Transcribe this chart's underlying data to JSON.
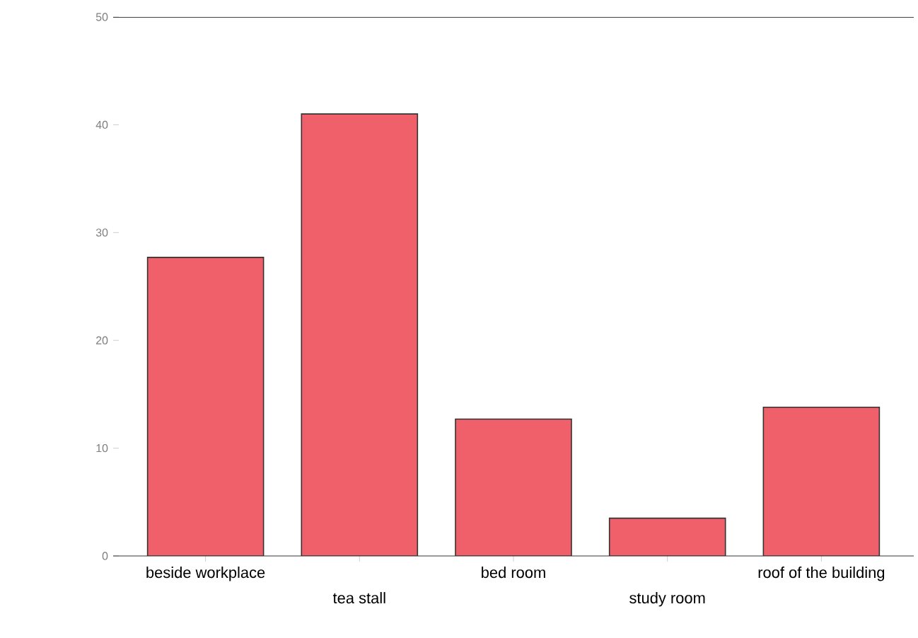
{
  "chart_data": {
    "type": "bar",
    "categories": [
      "beside workplace",
      "tea stall",
      "bed room",
      "study room",
      "roof of the building"
    ],
    "values": [
      27.7,
      41,
      12.7,
      3.5,
      13.8
    ],
    "color": "#f0606a",
    "ylim": [
      0,
      50
    ],
    "yticks": [
      0,
      10,
      20,
      30,
      40,
      50
    ],
    "grid": false,
    "legend": false
  }
}
